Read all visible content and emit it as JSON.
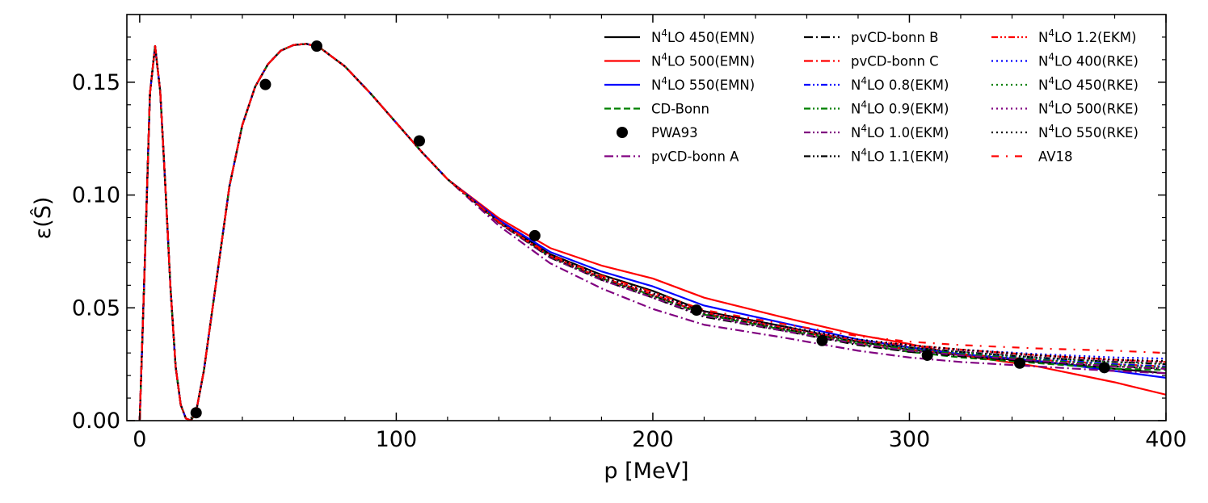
{
  "chart_data": {
    "type": "line",
    "xlabel": "p [MeV]",
    "ylabel": "ε(Ŝ)",
    "xlim": [
      -5,
      400
    ],
    "ylim": [
      0,
      0.18
    ],
    "xticks": [
      0,
      100,
      200,
      300,
      400
    ],
    "xtick_labels": [
      "0",
      "100",
      "200",
      "300",
      "400"
    ],
    "yticks": [
      0.0,
      0.05,
      0.1,
      0.15
    ],
    "ytick_labels": [
      "0.00",
      "0.05",
      "0.10",
      "0.15"
    ],
    "legend_position": "top-right",
    "grid": false,
    "x": [
      0,
      2,
      4,
      6,
      8,
      10,
      12,
      14,
      16,
      18,
      20,
      22,
      25,
      30,
      35,
      40,
      45,
      50,
      55,
      60,
      65,
      70,
      80,
      90,
      100,
      110,
      120,
      140,
      160,
      180,
      200,
      220,
      250,
      280,
      300,
      320,
      350,
      380,
      400
    ],
    "base_curve": [
      0.0,
      0.07,
      0.145,
      0.166,
      0.146,
      0.104,
      0.059,
      0.024,
      0.007,
      0.001,
      0.0,
      0.004,
      0.022,
      0.063,
      0.104,
      0.131,
      0.148,
      0.158,
      0.164,
      0.1665,
      0.167,
      0.1655,
      0.157,
      0.145,
      0.132,
      0.119,
      0.107,
      0.087,
      0.071,
      0.0605,
      0.052,
      0.0465,
      0.04,
      0.035,
      0.0325,
      0.0305,
      0.028,
      0.0255,
      0.024
    ],
    "series": [
      {
        "name": "N⁴LO 450(EMN)",
        "label_pre": "N",
        "label_sup": "4",
        "label_post": "LO 450(EMN)",
        "color": "#000000",
        "style": "solid",
        "tail": [
          0.0575,
          0.0485,
          0.042,
          0.035,
          0.0315,
          0.029,
          0.026,
          0.023,
          0.021
        ]
      },
      {
        "name": "N⁴LO 500(EMN)",
        "label_pre": "N",
        "label_sup": "4",
        "label_post": "LO 500(EMN)",
        "color": "#ff0000",
        "style": "solid",
        "tail": [
          0.063,
          0.0545,
          0.046,
          0.038,
          0.034,
          0.029,
          0.024,
          0.017,
          0.0115
        ]
      },
      {
        "name": "N⁴LO 550(EMN)",
        "label_pre": "N",
        "label_sup": "4",
        "label_post": "LO 550(EMN)",
        "color": "#0000ff",
        "style": "solid",
        "tail": [
          0.0595,
          0.051,
          0.0435,
          0.036,
          0.0325,
          0.0295,
          0.0265,
          0.022,
          0.019
        ]
      },
      {
        "name": "CD-Bonn",
        "label_pre": "CD-Bonn",
        "label_sup": "",
        "label_post": "",
        "color": "#008000",
        "style": "dash",
        "tail": [
          0.0555,
          0.047,
          0.0405,
          0.034,
          0.0305,
          0.028,
          0.0255,
          0.023,
          0.0225
        ]
      },
      {
        "name": "PWA93",
        "label_pre": "PWA93",
        "label_sup": "",
        "label_post": "",
        "color": "#000000",
        "style": "marker",
        "points": [
          [
            22,
            0.0035
          ],
          [
            49,
            0.149
          ],
          [
            69,
            0.166
          ],
          [
            109,
            0.124
          ],
          [
            154,
            0.082
          ],
          [
            217,
            0.049
          ],
          [
            266,
            0.0355
          ],
          [
            307,
            0.029
          ],
          [
            343,
            0.0255
          ],
          [
            376,
            0.0235
          ]
        ]
      },
      {
        "name": "pvCD-bonn A",
        "label_pre": "pvCD-bonn A",
        "label_sup": "",
        "label_post": "",
        "color": "#800080",
        "style": "dashdot",
        "tail": [
          0.0495,
          0.0425,
          0.037,
          0.031,
          0.028,
          0.026,
          0.024,
          0.022,
          0.021
        ]
      },
      {
        "name": "pvCD-bonn B",
        "label_pre": "pvCD-bonn B",
        "label_sup": "",
        "label_post": "",
        "color": "#000000",
        "style": "dashdot",
        "tail": [
          0.0545,
          0.046,
          0.04,
          0.0335,
          0.0305,
          0.0285,
          0.026,
          0.024,
          0.023
        ]
      },
      {
        "name": "pvCD-bonn C",
        "label_pre": "pvCD-bonn C",
        "label_sup": "",
        "label_post": "",
        "color": "#ff0000",
        "style": "dashdot",
        "tail": [
          0.0555,
          0.0475,
          0.041,
          0.0345,
          0.0315,
          0.0295,
          0.027,
          0.025,
          0.024
        ]
      },
      {
        "name": "N⁴LO 0.8(EKM)",
        "label_pre": "N",
        "label_sup": "4",
        "label_post": "LO 0.8(EKM)",
        "color": "#0000ff",
        "style": "dashdotdot",
        "tail": [
          0.0555,
          0.0475,
          0.041,
          0.035,
          0.032,
          0.03,
          0.0275,
          0.025,
          0.024
        ]
      },
      {
        "name": "N⁴LO 0.9(EKM)",
        "label_pre": "N",
        "label_sup": "4",
        "label_post": "LO 0.9(EKM)",
        "color": "#008000",
        "style": "dashdotdot",
        "tail": [
          0.055,
          0.047,
          0.0405,
          0.0345,
          0.0315,
          0.0295,
          0.027,
          0.0245,
          0.0235
        ]
      },
      {
        "name": "N⁴LO 1.0(EKM)",
        "label_pre": "N",
        "label_sup": "4",
        "label_post": "LO 1.0(EKM)",
        "color": "#800080",
        "style": "dashdotdot",
        "tail": [
          0.0545,
          0.0465,
          0.04,
          0.034,
          0.031,
          0.029,
          0.0265,
          0.024,
          0.023
        ]
      },
      {
        "name": "N⁴LO 1.1(EKM)",
        "label_pre": "N",
        "label_sup": "4",
        "label_post": "LO 1.1(EKM)",
        "color": "#000000",
        "style": "dashdotdot",
        "tail": [
          0.0555,
          0.0475,
          0.041,
          0.035,
          0.0325,
          0.0305,
          0.028,
          0.026,
          0.025
        ]
      },
      {
        "name": "N⁴LO 1.2(EKM)",
        "label_pre": "N",
        "label_sup": "4",
        "label_post": "LO 1.2(EKM)",
        "color": "#ff0000",
        "style": "dashdotdot",
        "tail": [
          0.056,
          0.048,
          0.0415,
          0.0355,
          0.0335,
          0.0315,
          0.029,
          0.027,
          0.026
        ]
      },
      {
        "name": "N⁴LO 400(RKE)",
        "label_pre": "N",
        "label_sup": "4",
        "label_post": "LO 400(RKE)",
        "color": "#0000ff",
        "style": "dotted",
        "tail": [
          0.0565,
          0.0485,
          0.042,
          0.036,
          0.0335,
          0.0315,
          0.0295,
          0.028,
          0.0275
        ]
      },
      {
        "name": "N⁴LO 450(RKE)",
        "label_pre": "N",
        "label_sup": "4",
        "label_post": "LO 450(RKE)",
        "color": "#008000",
        "style": "dotted",
        "tail": [
          0.0555,
          0.0475,
          0.041,
          0.035,
          0.0325,
          0.0305,
          0.028,
          0.026,
          0.0255
        ]
      },
      {
        "name": "N⁴LO 500(RKE)",
        "label_pre": "N",
        "label_sup": "4",
        "label_post": "LO 500(RKE)",
        "color": "#800080",
        "style": "dotted",
        "tail": [
          0.056,
          0.048,
          0.0415,
          0.0355,
          0.033,
          0.031,
          0.0285,
          0.0265,
          0.026
        ]
      },
      {
        "name": "N⁴LO 550(RKE)",
        "label_pre": "N",
        "label_sup": "4",
        "label_post": "LO 550(RKE)",
        "color": "#000000",
        "style": "dotted",
        "tail": [
          0.0565,
          0.0485,
          0.042,
          0.036,
          0.0335,
          0.0315,
          0.029,
          0.027,
          0.0265
        ]
      },
      {
        "name": "AV18",
        "label_pre": "AV18",
        "label_sup": "",
        "label_post": "",
        "color": "#ff0000",
        "style": "dashdotsparse",
        "tail": [
          0.057,
          0.049,
          0.043,
          0.0375,
          0.035,
          0.0335,
          0.032,
          0.031,
          0.03
        ]
      }
    ]
  }
}
